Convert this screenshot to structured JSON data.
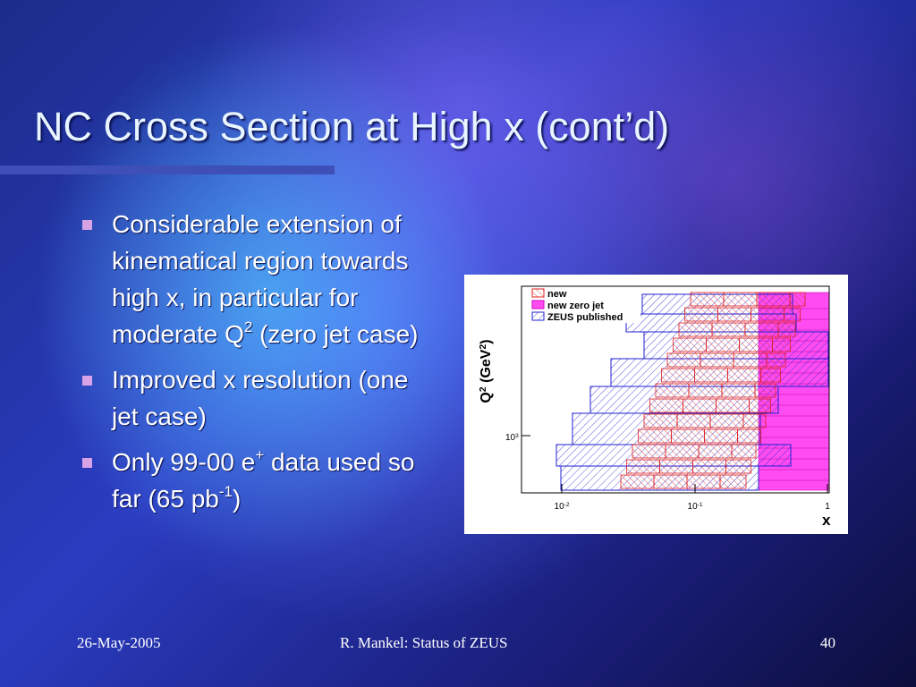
{
  "title": "NC Cross Section at High x (cont’d)",
  "bullets": [
    [
      {
        "text": "Considerable extension of kinematical region towards high x, in particular for moderate Q"
      },
      {
        "sup": "2"
      },
      {
        "text": " (zero jet case)"
      }
    ],
    [
      {
        "text": "Improved x resolution (one jet case)"
      }
    ],
    [
      {
        "text": "Only 99-00 e"
      },
      {
        "sup": "+"
      },
      {
        "text": " data used so far (65 pb"
      },
      {
        "sup": "-1"
      },
      {
        "text": ")"
      }
    ]
  ],
  "figure": {
    "legend": [
      "new",
      "new zero jet",
      "ZEUS published"
    ],
    "y_label": [
      {
        "text": "Q"
      },
      {
        "sup": "2"
      },
      {
        "text": " (GeV"
      },
      {
        "sup": "2"
      },
      {
        "text": ")"
      }
    ],
    "y_ticks": [
      [
        {
          "text": "10"
        },
        {
          "sup": "3"
        }
      ]
    ],
    "x_ticks": [
      [
        {
          "text": "10"
        },
        {
          "sup": "-2"
        }
      ],
      [
        {
          "text": "10"
        },
        {
          "sup": "-1"
        }
      ],
      [
        {
          "text": "1"
        }
      ]
    ],
    "x_label": "x"
  },
  "footer": {
    "date": "26-May-2005",
    "center": "R. Mankel: Status of ZEUS",
    "page": "40"
  }
}
